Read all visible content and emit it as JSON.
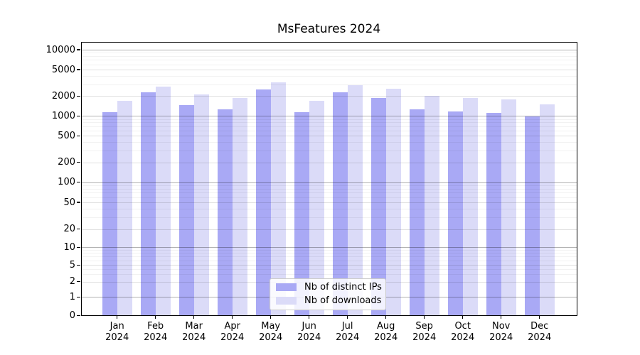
{
  "title": "MsFeatures 2024",
  "legend": {
    "items": [
      {
        "label": "Nb of distinct IPs"
      },
      {
        "label": "Nb of downloads"
      }
    ]
  },
  "x_axis": {
    "months": [
      "Jan",
      "Feb",
      "Mar",
      "Apr",
      "May",
      "Jun",
      "Jul",
      "Aug",
      "Sep",
      "Oct",
      "Nov",
      "Dec"
    ],
    "year": "2024"
  },
  "chart_data": {
    "type": "bar",
    "title": "MsFeatures 2024",
    "categories": [
      "Jan 2024",
      "Feb 2024",
      "Mar 2024",
      "Apr 2024",
      "May 2024",
      "Jun 2024",
      "Jul 2024",
      "Aug 2024",
      "Sep 2024",
      "Oct 2024",
      "Nov 2024",
      "Dec 2024"
    ],
    "series": [
      {
        "name": "Nb of distinct IPs",
        "color": "#a9a9f5",
        "values": [
          1150,
          2270,
          1450,
          1270,
          2500,
          1130,
          2250,
          1880,
          1250,
          1180,
          1100,
          980
        ]
      },
      {
        "name": "Nb of downloads",
        "color": "#dbdbf8",
        "values": [
          1700,
          2800,
          2100,
          1850,
          3200,
          1680,
          2900,
          2580,
          2010,
          1890,
          1780,
          1510
        ]
      }
    ],
    "yscale": "symlog",
    "yticks": [
      0,
      1,
      2,
      5,
      10,
      20,
      50,
      100,
      200,
      500,
      1000,
      2000,
      5000,
      10000
    ],
    "ylim": [
      0,
      10000
    ],
    "grid": true,
    "legend_position": "lower center"
  }
}
